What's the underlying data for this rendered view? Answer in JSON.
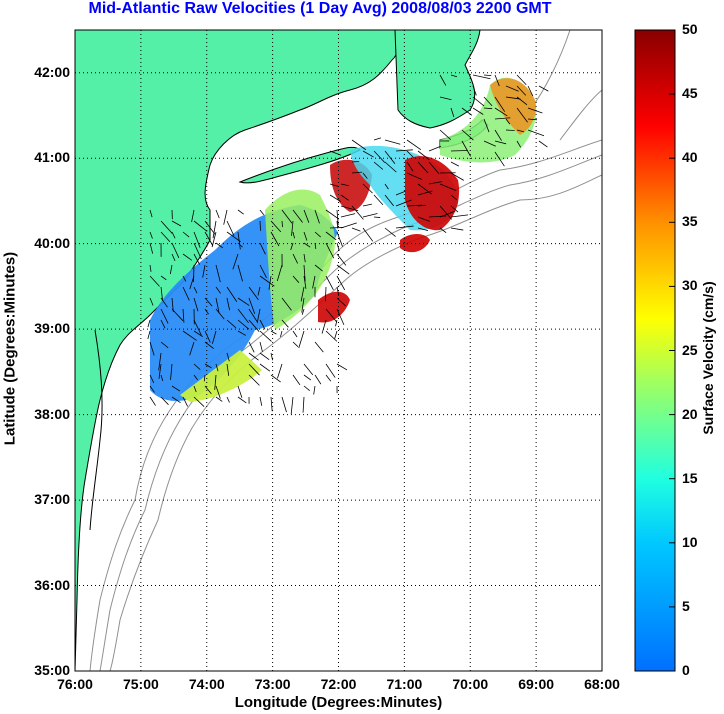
{
  "title": "Mid-Atlantic Raw Velocities (1 Day Avg) 2008/08/03 2200 GMT",
  "x_axis": {
    "label": "Longitude (Degrees:Minutes)",
    "ticks": [
      "76:00",
      "75:00",
      "74:00",
      "73:00",
      "72:00",
      "71:00",
      "70:00",
      "69:00",
      "68:00"
    ]
  },
  "y_axis": {
    "label": "Latitude (Degrees:Minutes)",
    "ticks": [
      "35:00",
      "36:00",
      "37:00",
      "38:00",
      "39:00",
      "40:00",
      "41:00",
      "42:00"
    ]
  },
  "colorbar": {
    "label": "Surface Velocity (cm/s)",
    "ticks": [
      "0",
      "5",
      "10",
      "15",
      "20",
      "25",
      "30",
      "35",
      "40",
      "45",
      "50"
    ],
    "range": [
      0,
      50
    ],
    "colors": [
      "#0080ff",
      "#00ffff",
      "#80ff80",
      "#ffff00",
      "#ff8000",
      "#ff0000",
      "#800000"
    ]
  },
  "map": {
    "land_color": "#55f0a8",
    "coastline_color": "#000000",
    "bathymetry_color": "#909090",
    "grid": "dotted",
    "lon_range": [
      -76,
      -68
    ],
    "lat_range": [
      35,
      42.5
    ]
  }
}
